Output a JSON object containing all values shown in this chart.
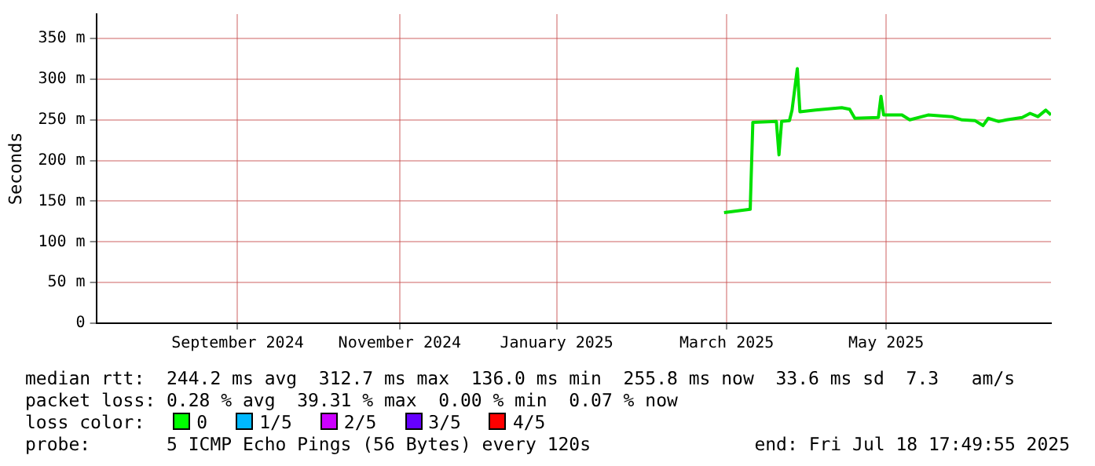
{
  "chart_data": {
    "type": "line",
    "ylabel": "Seconds",
    "x": [
      "2025-03-15",
      "2025-03-25",
      "2025-03-26",
      "2025-04-04",
      "2025-04-05",
      "2025-04-06",
      "2025-04-09",
      "2025-04-10",
      "2025-04-12",
      "2025-04-13",
      "2025-04-19",
      "2025-04-29",
      "2025-05-02",
      "2025-05-04",
      "2025-05-13",
      "2025-05-14",
      "2025-05-15",
      "2025-05-22",
      "2025-05-25",
      "2025-06-01",
      "2025-06-10",
      "2025-06-14",
      "2025-06-19",
      "2025-06-22",
      "2025-06-24",
      "2025-06-28",
      "2025-07-01",
      "2025-07-07",
      "2025-07-10",
      "2025-07-13",
      "2025-07-16",
      "2025-07-18"
    ],
    "series": [
      {
        "color": "#00e000",
        "values": [
          136,
          140,
          247,
          248,
          207,
          248,
          249,
          262,
          313,
          260,
          262,
          265,
          263,
          252,
          253,
          279,
          256,
          256,
          250,
          256,
          254,
          250,
          249,
          243,
          252,
          248,
          250,
          253,
          258,
          254,
          262,
          256
        ]
      }
    ],
    "xlim": [
      "2024-07-18",
      "2025-07-18"
    ],
    "xticks": [
      {
        "value": "2024-09-10",
        "label": "September 2024"
      },
      {
        "value": "2024-11-11",
        "label": "November 2024"
      },
      {
        "value": "2025-01-10",
        "label": "January 2025"
      },
      {
        "value": "2025-03-16",
        "label": "March 2025"
      },
      {
        "value": "2025-05-16",
        "label": "May 2025"
      }
    ],
    "ylim": [
      0,
      380
    ],
    "yticks": [
      0,
      {
        "value": 50,
        "label": "50 m"
      },
      {
        "value": 100,
        "label": "100 m"
      },
      {
        "value": 150,
        "label": "150 m"
      },
      {
        "value": 200,
        "label": "200 m"
      },
      {
        "value": 250,
        "label": "250 m"
      },
      {
        "value": 300,
        "label": "300 m"
      },
      {
        "value": 350,
        "label": "350 m"
      }
    ],
    "grid": true,
    "legend": false,
    "marker": "none",
    "line_style": "solid",
    "annotations": [
      "median rtt:  244.2 ms avg  312.7 ms max  136.0 ms min  255.8 ms now  33.6 ms sd  7.3   am/s",
      "packet loss: 0.28 % avg  39.31 % max  0.00 % min  0.07 % now",
      "loss color:",
      "0",
      "1/5",
      "2/5",
      "3/5",
      "4/5",
      "probe:       5 ICMP Echo Pings (56 Bytes) every 120s",
      "end: Fri Jul 18 17:49:55 2025"
    ]
  }
}
